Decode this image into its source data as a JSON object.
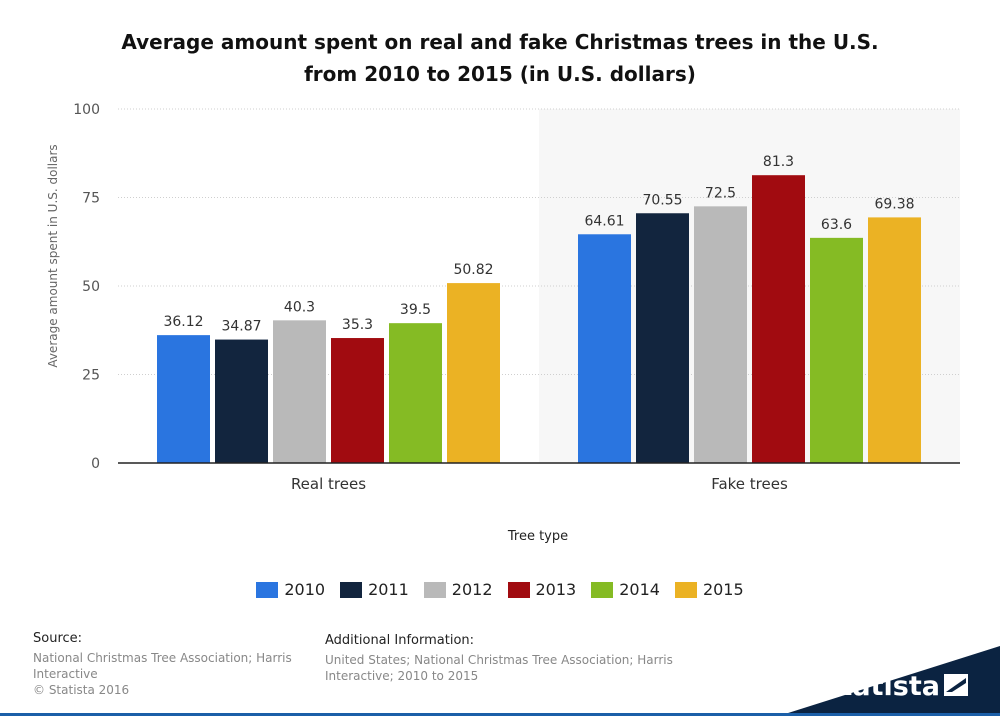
{
  "chart_data": {
    "type": "bar",
    "title": "Average amount spent on real and fake Christmas trees in the U.S. from 2010 to 2015 (in U.S. dollars)",
    "title_line1": "Average amount spent on real and fake Christmas trees in the U.S.",
    "title_line2": "from 2010 to 2015 (in U.S. dollars)",
    "categories": [
      "Real trees",
      "Fake trees"
    ],
    "series": [
      {
        "name": "2010",
        "color": "#2a75e0",
        "values": [
          36.12,
          64.61
        ]
      },
      {
        "name": "2011",
        "color": "#12253e",
        "values": [
          34.87,
          70.55
        ]
      },
      {
        "name": "2012",
        "color": "#b9b9b9",
        "values": [
          40.3,
          72.5
        ]
      },
      {
        "name": "2013",
        "color": "#a10b10",
        "values": [
          35.3,
          81.3
        ]
      },
      {
        "name": "2014",
        "color": "#85bb24",
        "values": [
          39.5,
          63.6
        ]
      },
      {
        "name": "2015",
        "color": "#ebb224",
        "values": [
          50.82,
          69.38
        ]
      }
    ],
    "value_labels": [
      [
        "36.12",
        "64.61"
      ],
      [
        "34.87",
        "70.55"
      ],
      [
        "40.3",
        "72.5"
      ],
      [
        "35.3",
        "81.3"
      ],
      [
        "39.5",
        "63.6"
      ],
      [
        "50.82",
        "69.38"
      ]
    ],
    "xlabel": "Tree type",
    "ylabel": "Average amount spent in U.S. dollars",
    "ylim": [
      0,
      100
    ],
    "yticks": [
      0,
      25,
      50,
      75,
      100
    ],
    "grid": true,
    "legend_position": "bottom"
  },
  "source": {
    "heading": "Source:",
    "line1": "National Christmas Tree Association; Harris Interactive",
    "line2": "© Statista 2016"
  },
  "additional_info": {
    "heading": "Additional Information:",
    "text": "United States; National Christmas Tree Association; Harris Interactive; 2010 to 2015"
  },
  "brand": {
    "name": "statista",
    "color": "#0b2341"
  }
}
